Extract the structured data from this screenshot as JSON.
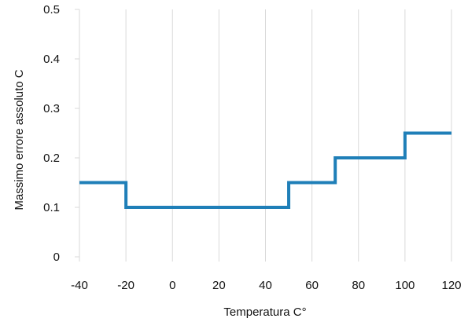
{
  "chart_data": {
    "type": "line",
    "step": "post",
    "xlabel": "Temperatura C°",
    "ylabel": "Massimo errore assoluto C",
    "xlim": [
      -40,
      120
    ],
    "ylim": [
      0,
      0.5
    ],
    "x_ticks": [
      "-40",
      "-20",
      "0",
      "20",
      "40",
      "60",
      "80",
      "100",
      "120"
    ],
    "y_ticks": [
      "0",
      "0.1",
      "0.2",
      "0.3",
      "0.4",
      "0.5"
    ],
    "grid": "vertical",
    "line_color": "#1f7fb8",
    "series": [
      {
        "x": [
          -40,
          -20,
          50,
          70,
          100,
          120
        ],
        "y": [
          0.15,
          0.1,
          0.15,
          0.2,
          0.25,
          0.25
        ]
      }
    ]
  }
}
